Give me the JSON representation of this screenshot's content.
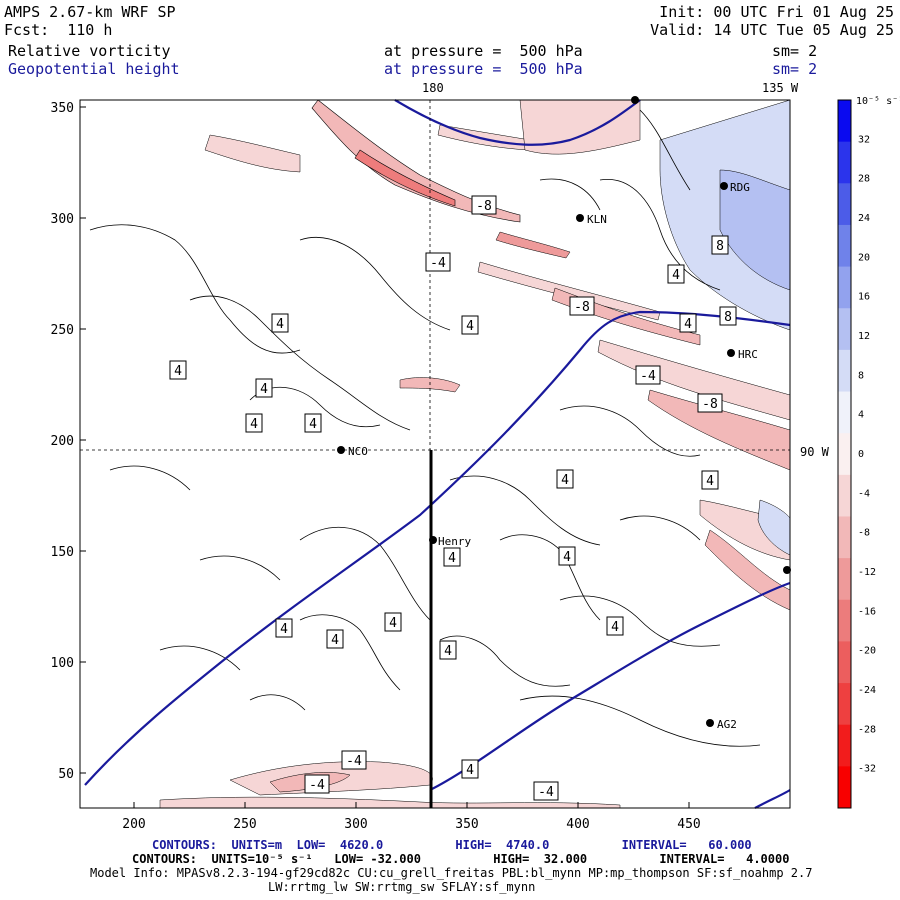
{
  "header": {
    "model": "AMPS 2.67-km WRF SP",
    "forecast": "Fcst:  110 h",
    "init": "Init: 00 UTC Fri 01 Aug 25",
    "valid": "Valid: 14 UTC Tue 05 Aug 25"
  },
  "fields": [
    {
      "name": "Relative vorticity",
      "pressure": "at pressure =  500 hPa",
      "sm": "sm= 2"
    },
    {
      "name": "Geopotential height",
      "pressure": "at pressure =  500 hPa",
      "sm": "sm= 2"
    }
  ],
  "map": {
    "lon_labels": {
      "top_180": "180",
      "top_135w": "135 W",
      "right_90w": "90 W"
    },
    "x_ticks": [
      "200",
      "250",
      "300",
      "350",
      "400",
      "450"
    ],
    "y_ticks": [
      "350",
      "300",
      "250",
      "200",
      "150",
      "100",
      "50"
    ],
    "stations": [
      "RDG",
      "KLN",
      "HRC",
      "NCO",
      "Henry",
      "AG2"
    ],
    "contour_labels": [
      "4",
      "-4",
      "8",
      "-8"
    ]
  },
  "colorbar": {
    "unit_label": "10⁻⁵ s⁻¹",
    "levels": [
      "32",
      "28",
      "24",
      "20",
      "16",
      "12",
      "8",
      "4",
      "0",
      "-4",
      "-8",
      "-12",
      "-16",
      "-20",
      "-24",
      "-28",
      "-32"
    ],
    "colors": [
      "#0a0af0",
      "#2b34ec",
      "#4c5ce8",
      "#6f82ea",
      "#92a2ee",
      "#b4c0f2",
      "#d4dcf6",
      "#f0f2fa",
      "#faf0f0",
      "#f6d6d6",
      "#f2b8b8",
      "#ee9a9a",
      "#ec7c7c",
      "#ec5e5e",
      "#ee4040",
      "#f21c1c",
      "#f80000"
    ]
  },
  "footer": {
    "line1": "CONTOURS:  UNITS=m  LOW=  4620.0          HIGH=  4740.0          INTERVAL=   60.000",
    "line2": "CONTOURS:  UNITS=10⁻⁵ s⁻¹   LOW= -32.000          HIGH=  32.000          INTERVAL=   4.0000",
    "line3": "Model Info: MPASv8.2.3-194-gf29cd82c CU:cu_grell_freitas PBL:bl_mynn MP:mp_thompson SF:sf_noahmp 2.7",
    "line4": "LW:rrtmg_lw SW:rrtmg_sw SFLAY:sf_mynn"
  }
}
